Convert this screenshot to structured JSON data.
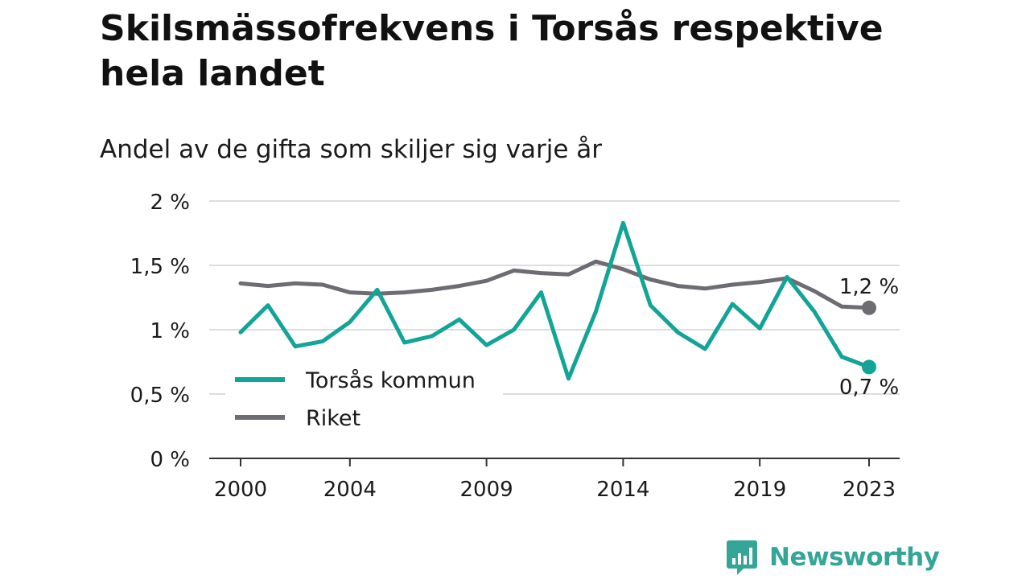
{
  "header": {
    "title": "Skilsmässofrekvens i Torsås respektive hela landet",
    "subtitle": "Andel av de gifta som skiljer sig varje år"
  },
  "brand": {
    "name": "Newsworthy",
    "icon": "bar-chart-speech-bubble-icon",
    "color": "#34a597"
  },
  "chart_data": {
    "type": "line",
    "x": [
      2000,
      2001,
      2002,
      2003,
      2004,
      2005,
      2006,
      2007,
      2008,
      2009,
      2010,
      2011,
      2012,
      2013,
      2014,
      2015,
      2016,
      2017,
      2018,
      2019,
      2020,
      2021,
      2022,
      2023
    ],
    "xticks": [
      2000,
      2004,
      2009,
      2014,
      2019,
      2023
    ],
    "xtick_labels": [
      "2000",
      "2004",
      "2009",
      "2014",
      "2019",
      "2023"
    ],
    "ylim": [
      0,
      2
    ],
    "yticks": [
      0,
      0.5,
      1,
      1.5,
      2
    ],
    "ytick_labels": [
      "0 %",
      "0,5 %",
      "1 %",
      "1,5 %",
      "2 %"
    ],
    "grid": true,
    "legend_position": "bottom-left",
    "series": [
      {
        "name": "Torsås kommun",
        "color": "#12a497",
        "values": [
          0.98,
          1.19,
          0.87,
          0.91,
          1.06,
          1.31,
          0.9,
          0.95,
          1.08,
          0.88,
          1.0,
          1.29,
          0.62,
          1.14,
          1.83,
          1.19,
          0.98,
          0.85,
          1.2,
          1.01,
          1.41,
          1.14,
          0.79,
          0.71
        ],
        "end_label": "0,7 %"
      },
      {
        "name": "Riket",
        "color": "#6d6c73",
        "values": [
          1.36,
          1.34,
          1.36,
          1.35,
          1.29,
          1.28,
          1.29,
          1.31,
          1.34,
          1.38,
          1.46,
          1.44,
          1.43,
          1.53,
          1.47,
          1.39,
          1.34,
          1.32,
          1.35,
          1.37,
          1.4,
          1.3,
          1.18,
          1.17
        ],
        "end_label": "1,2 %"
      }
    ]
  }
}
